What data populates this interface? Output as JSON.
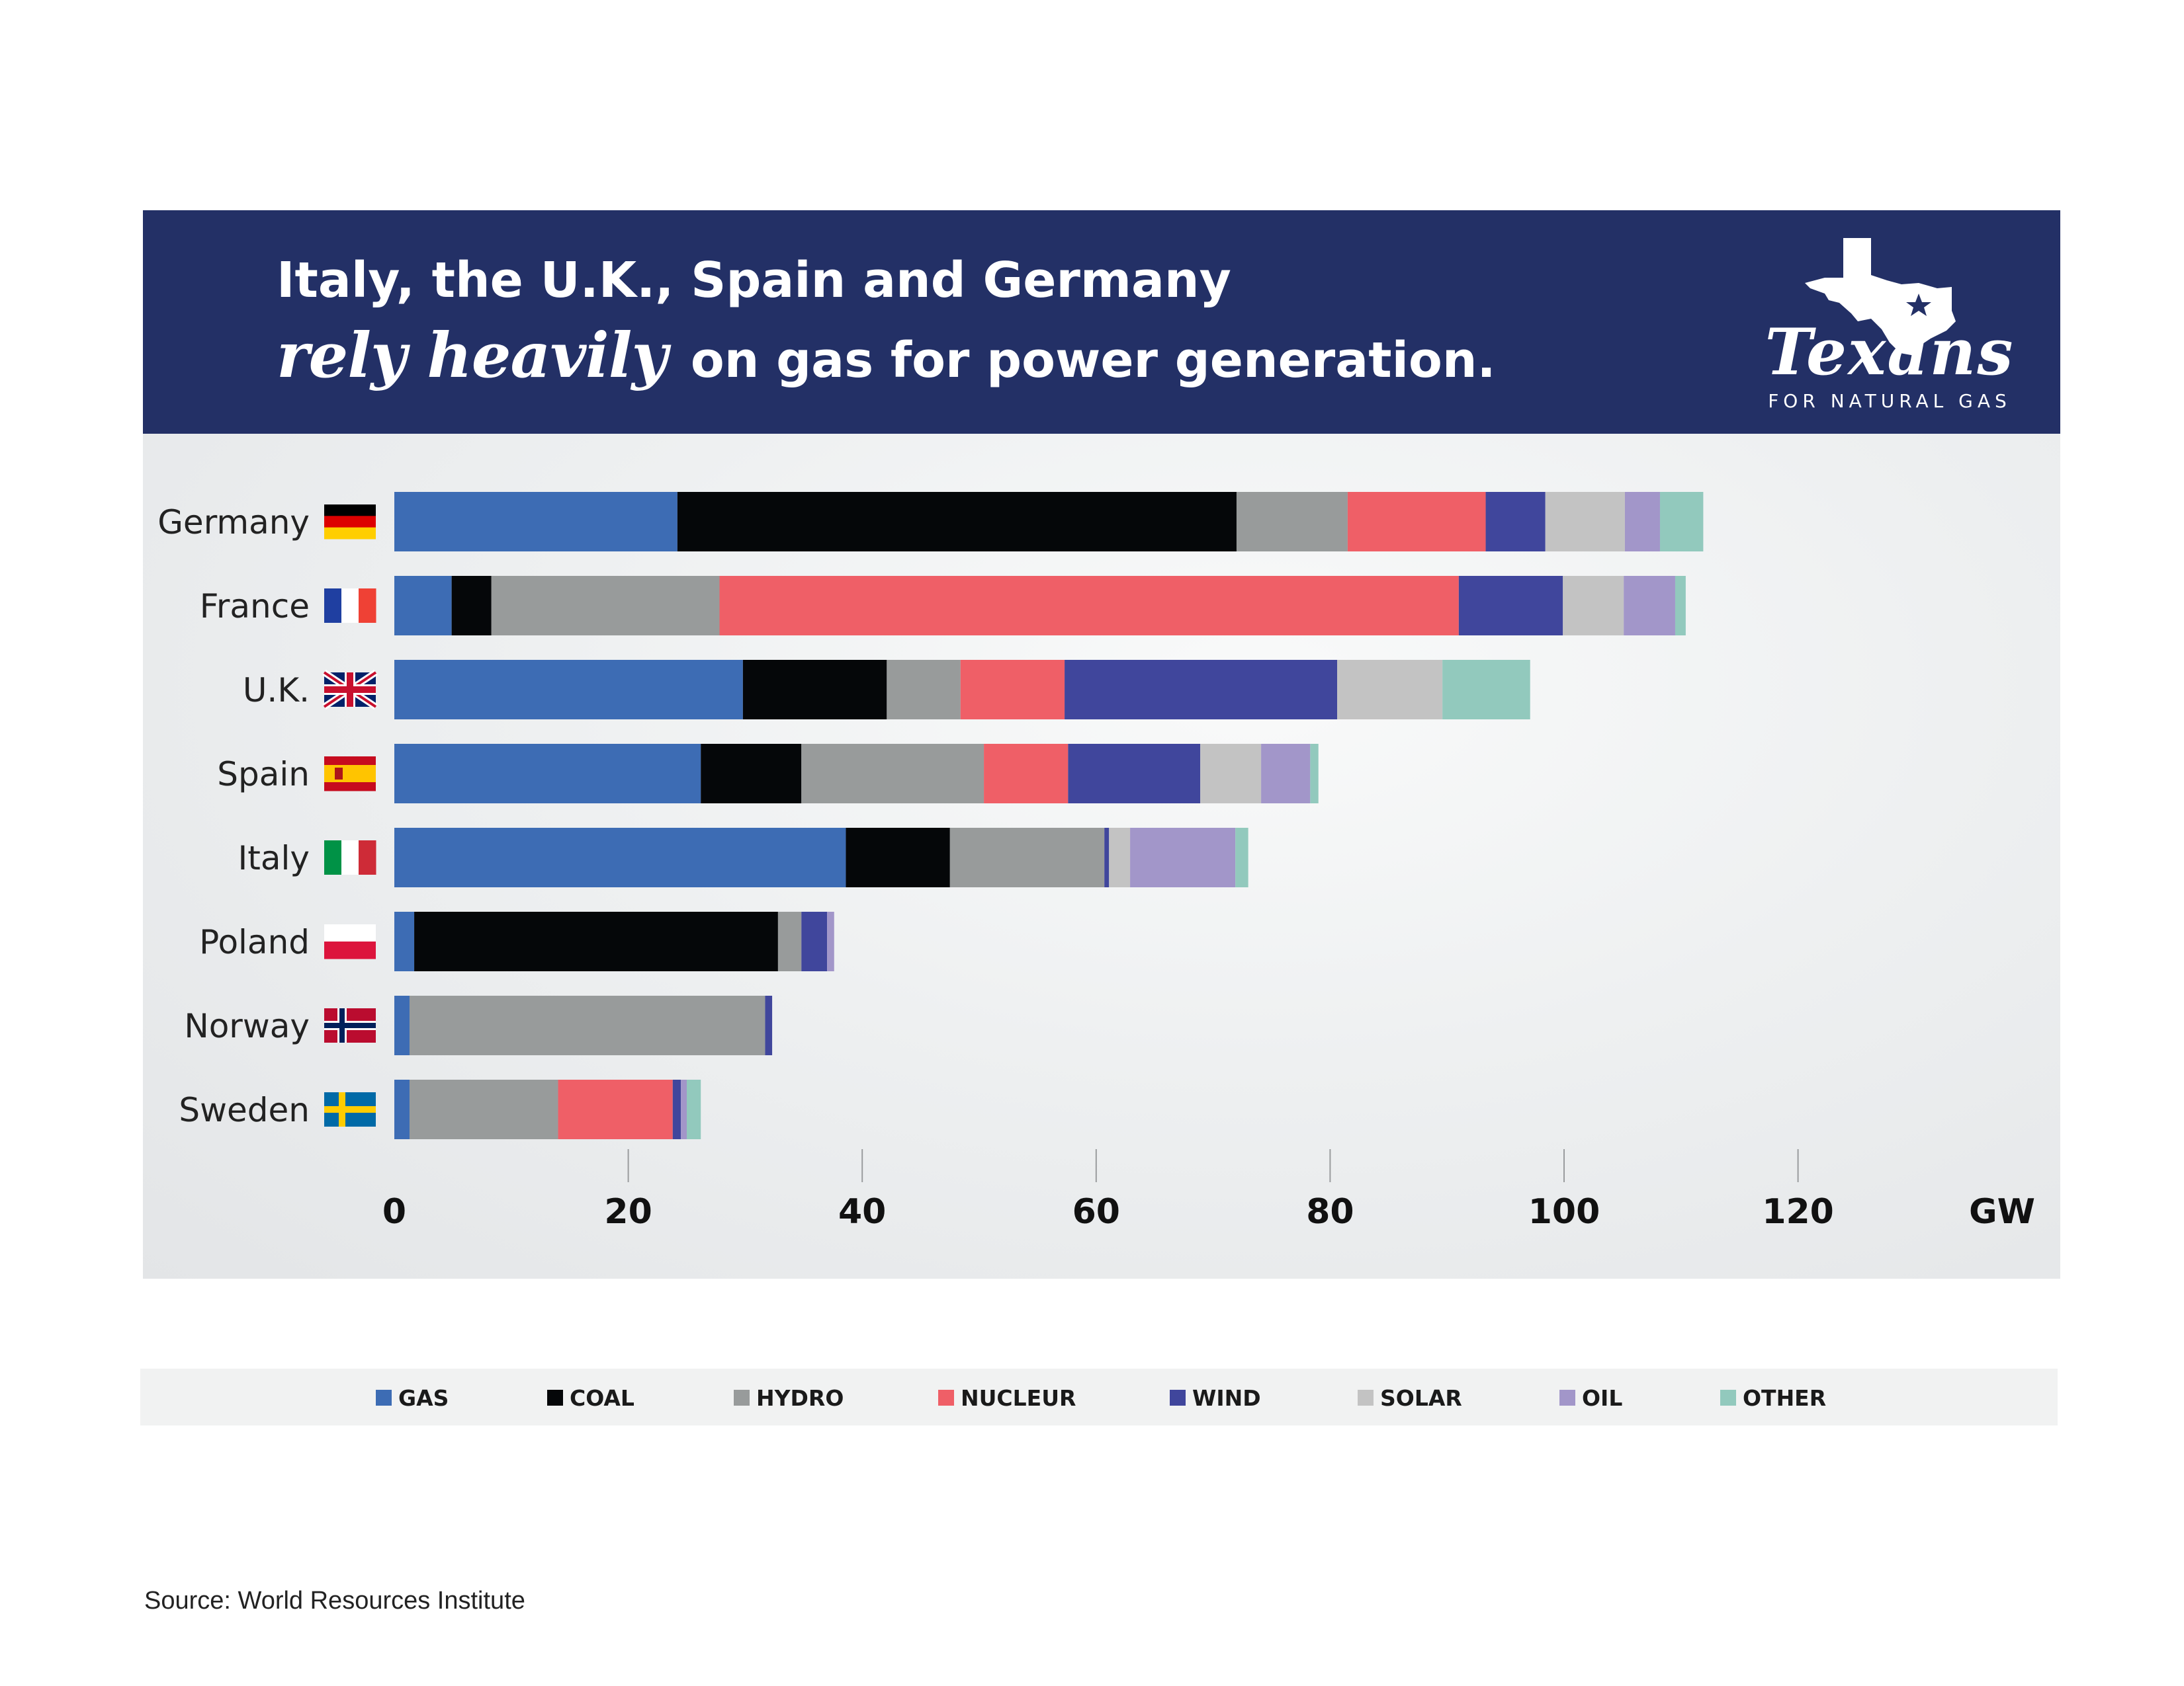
{
  "header": {
    "line1": "Italy, the U.K., Spain and Germany",
    "emphasis": "rely heavily",
    "line2_rest": "on gas for power generation."
  },
  "logo": {
    "wordmark": "Texans",
    "tagline": "FOR NATURAL GAS",
    "icon": "texas-map-star-icon"
  },
  "source": "Source: World Resources Institute",
  "colors": {
    "GAS": "#3d6cb4",
    "COAL": "#050709",
    "HYDRO": "#989b9b",
    "NUCLEUR": "#ef5f67",
    "WIND": "#40469c",
    "SOLAR": "#c3c3c3",
    "OIL": "#a296c9",
    "OTHER": "#92c9bd",
    "banner": "#233066"
  },
  "chart_data": {
    "type": "bar",
    "orientation": "horizontal",
    "stacked": true,
    "categories": [
      "Germany",
      "France",
      "U.K.",
      "Spain",
      "Italy",
      "Poland",
      "Norway",
      "Sweden"
    ],
    "flags": [
      "germany-flag-icon",
      "france-flag-icon",
      "uk-flag-icon",
      "spain-flag-icon",
      "italy-flag-icon",
      "poland-flag-icon",
      "norway-flag-icon",
      "sweden-flag-icon"
    ],
    "series": [
      {
        "name": "GAS",
        "values": [
          24.2,
          4.9,
          29.8,
          26.2,
          38.6,
          1.7,
          1.3,
          1.3
        ]
      },
      {
        "name": "COAL",
        "values": [
          47.8,
          3.4,
          12.3,
          8.6,
          8.9,
          31.1,
          0,
          0
        ]
      },
      {
        "name": "HYDRO",
        "values": [
          9.5,
          19.5,
          6.3,
          15.6,
          13.2,
          2.0,
          30.4,
          12.7
        ]
      },
      {
        "name": "NUCLEUR",
        "values": [
          11.8,
          63.2,
          8.9,
          7.2,
          0,
          0,
          0,
          9.8
        ]
      },
      {
        "name": "WIND",
        "values": [
          5.1,
          8.9,
          23.3,
          11.3,
          0.4,
          2.2,
          0.6,
          0.7
        ]
      },
      {
        "name": "SOLAR",
        "values": [
          6.8,
          5.2,
          9.0,
          5.2,
          1.8,
          0,
          0,
          0
        ]
      },
      {
        "name": "OIL",
        "values": [
          3.0,
          4.4,
          0,
          4.2,
          9.0,
          0.6,
          0,
          0.5
        ]
      },
      {
        "name": "OTHER",
        "values": [
          3.7,
          0.9,
          7.5,
          0.7,
          1.1,
          0,
          0,
          1.2
        ]
      }
    ],
    "xticks": [
      0,
      20,
      40,
      60,
      80,
      100,
      120
    ],
    "xlim": [
      0,
      138
    ],
    "unit": "GW",
    "legend_position": "bottom"
  }
}
